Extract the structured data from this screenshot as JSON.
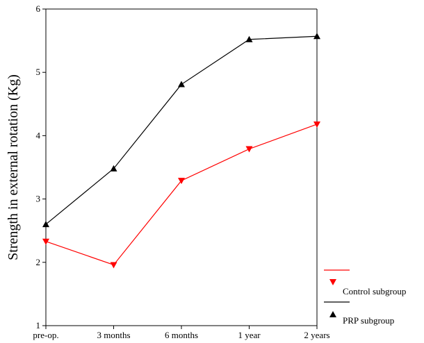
{
  "chart_data": {
    "type": "line",
    "title": "",
    "xlabel": "",
    "ylabel": "Strength in external rotation (Kg)",
    "categories": [
      "pre-op.",
      "3 months",
      "6 months",
      "1 year",
      "2 years"
    ],
    "ylim": [
      1,
      6
    ],
    "yticks": [
      "1",
      "2",
      "3",
      "4",
      "5",
      "6"
    ],
    "grid": false,
    "legend_position": "bottom-right",
    "series": [
      {
        "name": "Control subgroup",
        "color": "#ff0000",
        "marker": "triangle-down",
        "values": [
          2.33,
          1.96,
          3.29,
          3.79,
          4.18
        ]
      },
      {
        "name": "PRP subgroup",
        "color": "#000000",
        "marker": "triangle-up",
        "values": [
          2.6,
          3.48,
          4.81,
          5.52,
          5.57
        ]
      }
    ]
  }
}
